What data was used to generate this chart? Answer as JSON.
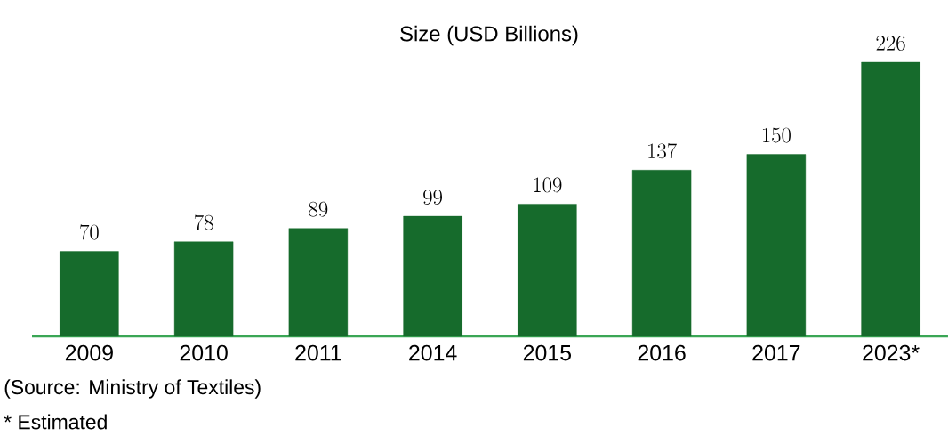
{
  "chart_data": {
    "type": "bar",
    "title": "Size (USD Billions)",
    "categories": [
      "2009",
      "2010",
      "2011",
      "2014",
      "2015",
      "2016",
      "2017",
      "2023*"
    ],
    "values": [
      70,
      78,
      89,
      99,
      109,
      137,
      150,
      226
    ],
    "color": "#166b2c",
    "data_labels": true,
    "grid": false,
    "legend": false,
    "tick_labels": "x",
    "annotations": [
      "(Source: Ministry of Textiles)",
      "* Estimated"
    ]
  }
}
